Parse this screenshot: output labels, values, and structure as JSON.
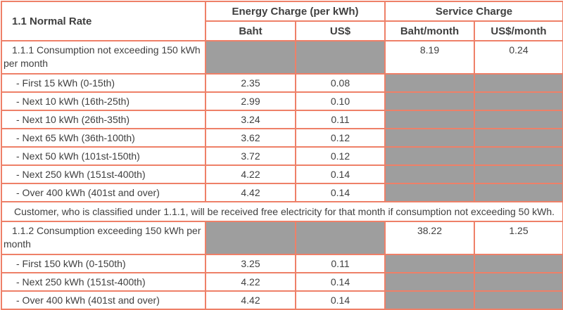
{
  "colors": {
    "border_accent": "#ee8068",
    "na_cell_gray": "#9e9e9e",
    "text": "#3f3f3f",
    "background": "#ffffff"
  },
  "table": {
    "corner_label": "1.1 Normal Rate",
    "groups": [
      {
        "label": "Energy Charge (per kWh)",
        "columns": [
          "Baht",
          "US$"
        ]
      },
      {
        "label": "Service Charge",
        "columns": [
          "Baht/month",
          "US$/month"
        ]
      }
    ],
    "rows": [
      {
        "style": "section",
        "label": "1.1.1 Consumption not exceeding 150 kWh per month",
        "baht": null,
        "usd": null,
        "baht_month": "8.19",
        "usd_month": "0.24"
      },
      {
        "style": "tier",
        "label": "- First 15 kWh (0-15th)",
        "baht": "2.35",
        "usd": "0.08",
        "baht_month": null,
        "usd_month": null
      },
      {
        "style": "tier",
        "label": "- Next 10 kWh (16th-25th)",
        "baht": "2.99",
        "usd": "0.10",
        "baht_month": null,
        "usd_month": null
      },
      {
        "style": "tier",
        "label": "- Next 10 kWh (26th-35th)",
        "baht": "3.24",
        "usd": "0.11",
        "baht_month": null,
        "usd_month": null
      },
      {
        "style": "tier",
        "label": "- Next 65 kWh (36th-100th)",
        "baht": "3.62",
        "usd": "0.12",
        "baht_month": null,
        "usd_month": null
      },
      {
        "style": "tier",
        "label": "- Next 50 kWh (101st-150th)",
        "baht": "3.72",
        "usd": "0.12",
        "baht_month": null,
        "usd_month": null
      },
      {
        "style": "tier",
        "label": "- Next 250 kWh (151st-400th)",
        "baht": "4.22",
        "usd": "0.14",
        "baht_month": null,
        "usd_month": null
      },
      {
        "style": "tier",
        "label": "- Over 400 kWh (401st and over)",
        "baht": "4.42",
        "usd": "0.14",
        "baht_month": null,
        "usd_month": null
      },
      {
        "style": "note",
        "label": "Customer, who is classified under 1.1.1, will be received free electricity for that month if consumption not exceeding 50 kWh."
      },
      {
        "style": "section",
        "label": "1.1.2 Consumption exceeding 150 kWh per month",
        "baht": null,
        "usd": null,
        "baht_month": "38.22",
        "usd_month": "1.25"
      },
      {
        "style": "tier",
        "label": "- First 150 kWh (0-150th)",
        "baht": "3.25",
        "usd": "0.11",
        "baht_month": null,
        "usd_month": null
      },
      {
        "style": "tier",
        "label": "- Next 250 kWh (151st-400th)",
        "baht": "4.22",
        "usd": "0.14",
        "baht_month": null,
        "usd_month": null
      },
      {
        "style": "tier",
        "label": "- Over 400 kWh (401st and over)",
        "baht": "4.42",
        "usd": "0.14",
        "baht_month": null,
        "usd_month": null
      }
    ]
  }
}
